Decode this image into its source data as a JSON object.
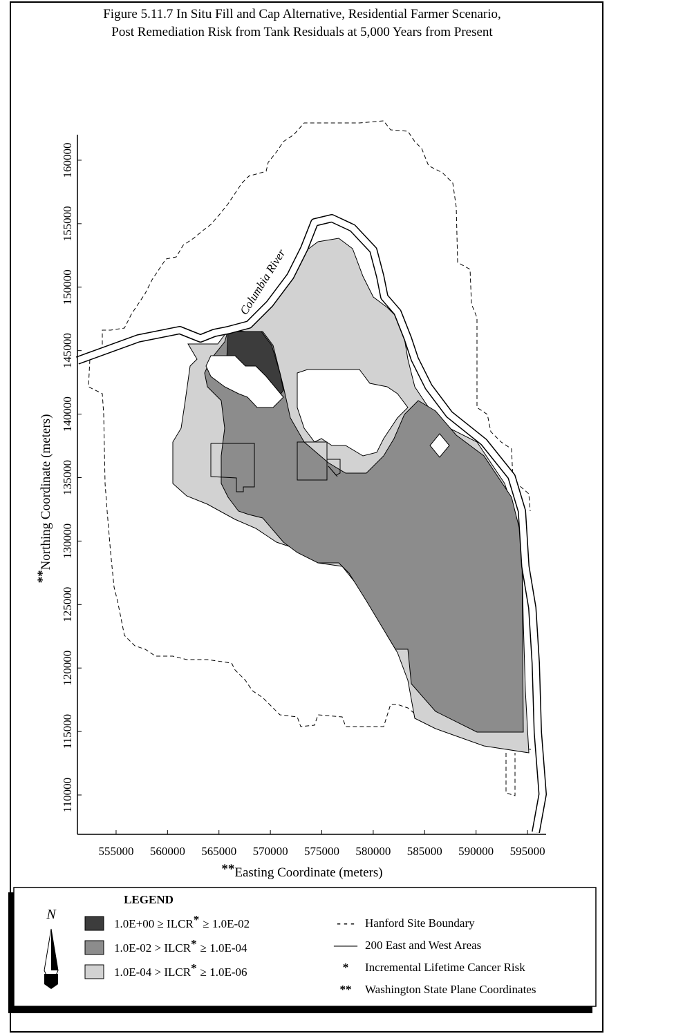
{
  "figure": {
    "title": [
      "Figure 5.11.7  In Situ Fill and Cap Alternative, Residential Farmer Scenario,",
      "Post Remediation Risk from Tank Residuals at 5,000 Years from Present"
    ],
    "river_label": "Columbia River",
    "x_axis": {
      "prefix": "**",
      "label": "Easting Coordinate (meters)",
      "lim": [
        551240,
        596810
      ],
      "ticks": [
        555000,
        560000,
        565000,
        570000,
        575000,
        580000,
        585000,
        590000,
        595000
      ]
    },
    "y_axis": {
      "prefix": "**",
      "label": "Northing Coordinate (meters)",
      "lim": [
        106900,
        162010
      ],
      "ticks": [
        110000,
        115000,
        120000,
        125000,
        130000,
        135000,
        140000,
        145000,
        150000,
        155000,
        160000
      ]
    },
    "legend": {
      "title": "LEGEND",
      "north": "N",
      "risk_classes": [
        {
          "left": "1.0E+00 ≥ ILCR",
          "star": "*",
          "right": "≥ 1.0E-02",
          "color": "#3c3c3c"
        },
        {
          "left": "1.0E-02 > ILCR",
          "star": "*",
          "right": "≥ 1.0E-04",
          "color": "#8c8c8c"
        },
        {
          "left": "1.0E-04 > ILCR",
          "star": "*",
          "right": "≥ 1.0E-06",
          "color": "#d2d2d2"
        }
      ],
      "notes": [
        {
          "symbol": "- - -",
          "text": "Hanford Site Boundary"
        },
        {
          "symbol": "——",
          "text": "200 East and West Areas"
        },
        {
          "symbol": "*",
          "text": "Incremental Lifetime Cancer Risk"
        },
        {
          "symbol": "**",
          "text": "Washington State Plane Coordinates"
        }
      ]
    }
  }
}
